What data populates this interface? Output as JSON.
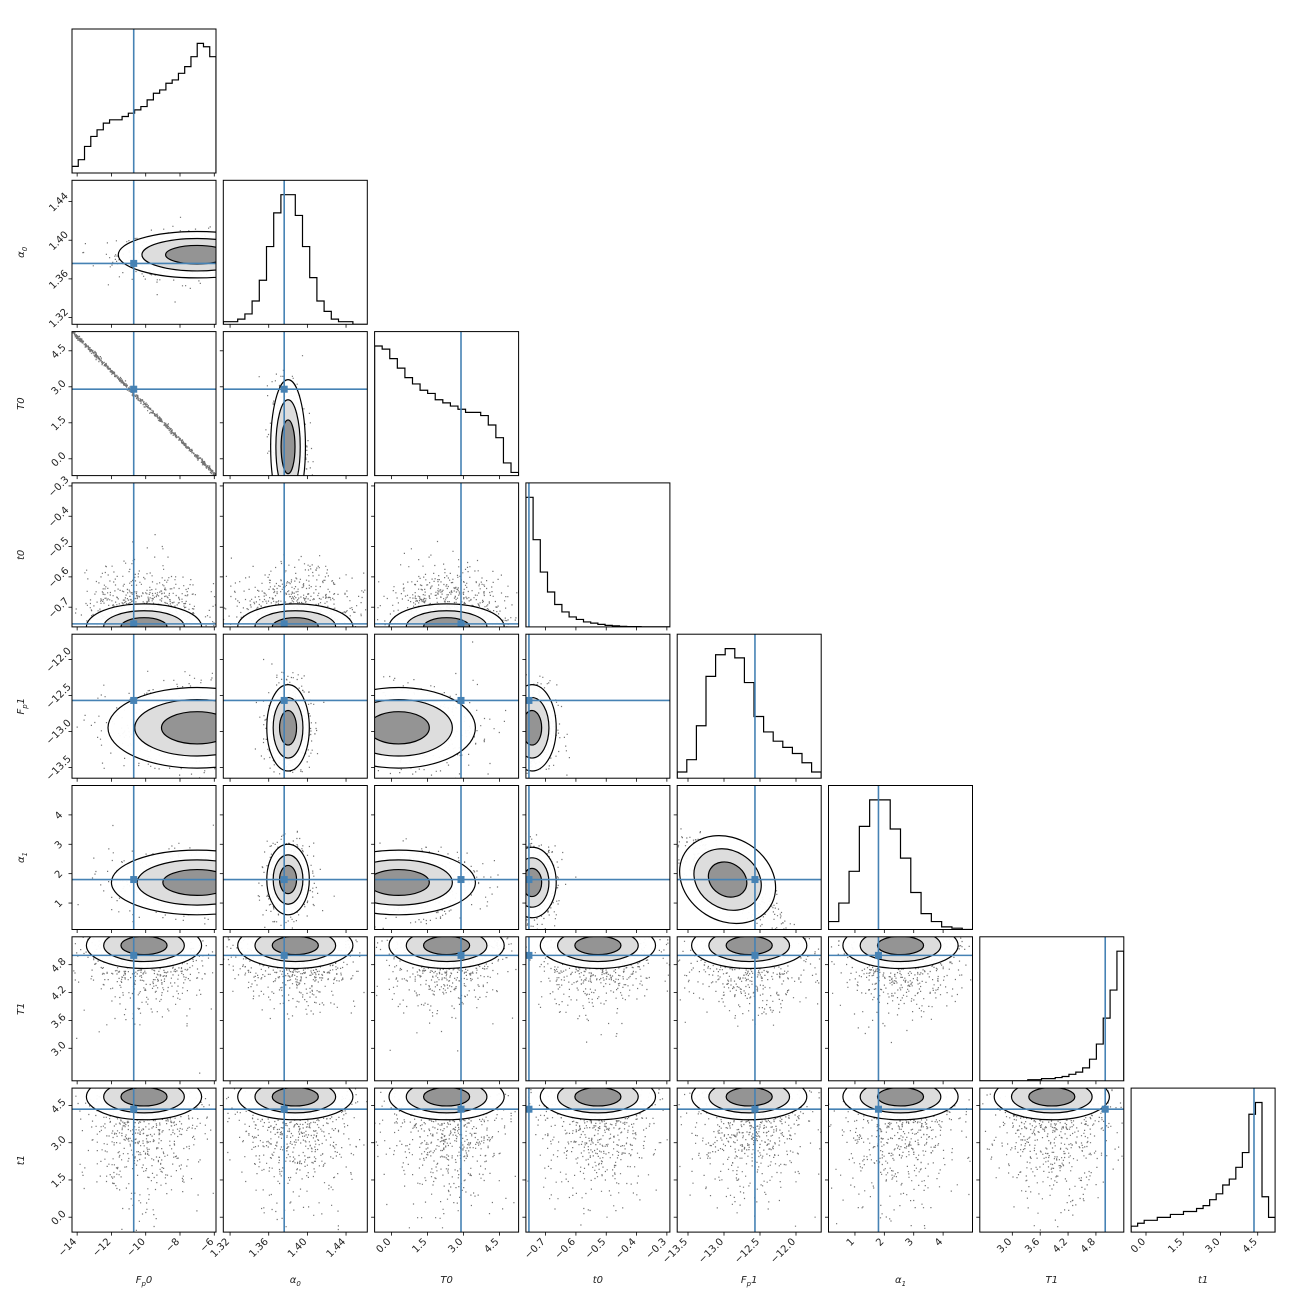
{
  "chart_data": {
    "type": "corner",
    "truth_color": "#4682b4",
    "parameters": [
      {
        "label": "F_p0",
        "sub": "p",
        "base": "F",
        "suffix": "0",
        "range": [
          -14.3,
          -5.9
        ],
        "ticks": [
          -14,
          -12,
          -10,
          -8,
          -6
        ],
        "tick_labels": [
          "−14",
          "−12",
          "−10",
          "−8",
          "−6"
        ],
        "truth": -10.7
      },
      {
        "label": "α_0",
        "base": "α",
        "sub": "0",
        "suffix": "",
        "range": [
          1.313,
          1.462
        ],
        "ticks": [
          1.32,
          1.36,
          1.4,
          1.44
        ],
        "tick_labels": [
          "1.32",
          "1.36",
          "1.40",
          "1.44"
        ],
        "truth": 1.376
      },
      {
        "label": "T0",
        "base": "T0",
        "sub": "",
        "suffix": "",
        "range": [
          -0.7,
          5.3
        ],
        "ticks": [
          0.0,
          1.5,
          3.0,
          4.5
        ],
        "tick_labels": [
          "0.0",
          "1.5",
          "3.0",
          "4.5"
        ],
        "truth": 2.9
      },
      {
        "label": "t0",
        "base": "t0",
        "sub": "",
        "suffix": "",
        "range": [
          -0.765,
          -0.29
        ],
        "ticks": [
          -0.7,
          -0.6,
          -0.5,
          -0.4,
          -0.3
        ],
        "tick_labels": [
          "−0.7",
          "−0.6",
          "−0.5",
          "−0.4",
          "−0.3"
        ],
        "truth": -0.755
      },
      {
        "label": "F_p1",
        "base": "F",
        "sub": "p",
        "suffix": "1",
        "range": [
          -13.65,
          -11.65
        ],
        "ticks": [
          -13.5,
          -13.0,
          -12.5,
          -12.0
        ],
        "tick_labels": [
          "−13.5",
          "−13.0",
          "−12.5",
          "−12.0"
        ],
        "truth": -12.57
      },
      {
        "label": "α_1",
        "base": "α",
        "sub": "1",
        "suffix": "",
        "range": [
          0.1,
          5.0
        ],
        "ticks": [
          1,
          2,
          3,
          4
        ],
        "tick_labels": [
          "1",
          "2",
          "3",
          "4"
        ],
        "truth": 1.8
      },
      {
        "label": "T1",
        "base": "T1",
        "sub": "",
        "suffix": "",
        "range": [
          2.3,
          5.4
        ],
        "ticks": [
          3.0,
          3.6,
          4.2,
          4.8
        ],
        "tick_labels": [
          "3.0",
          "3.6",
          "4.2",
          "4.8"
        ],
        "truth": 5.0
      },
      {
        "label": "t1",
        "base": "t1",
        "sub": "",
        "suffix": "",
        "range": [
          -0.6,
          5.2
        ],
        "ticks": [
          0.0,
          1.5,
          3.0,
          4.5
        ],
        "tick_labels": [
          "0.0",
          "1.5",
          "3.0",
          "4.5"
        ],
        "truth": 4.35
      }
    ],
    "histograms": [
      [
        2,
        4,
        8,
        11,
        13,
        15,
        16,
        16,
        17,
        18,
        19,
        20,
        22,
        24,
        25,
        27,
        28,
        30,
        32,
        35,
        39,
        38,
        35
      ],
      [
        1,
        1,
        2,
        4,
        9,
        17,
        30,
        43,
        50,
        50,
        42,
        30,
        18,
        9,
        5,
        2,
        1,
        1,
        0,
        0
      ],
      [
        41,
        40,
        37,
        34,
        31,
        29,
        27,
        26,
        24,
        23,
        22,
        21,
        20,
        20,
        19,
        16,
        12,
        4,
        1
      ],
      [
        52,
        35,
        22,
        14,
        9,
        6,
        4,
        3,
        2,
        1.5,
        1,
        0.6,
        0.4,
        0.2,
        0.1,
        0.1,
        0,
        0,
        0,
        0
      ],
      [
        2,
        6,
        17,
        33,
        40,
        42,
        39,
        31,
        20,
        15,
        12,
        10,
        8,
        5,
        2
      ],
      [
        3,
        10,
        22,
        39,
        49,
        49,
        38,
        27,
        14,
        6,
        3,
        1,
        0.5,
        0
      ],
      [
        0,
        0,
        0,
        0,
        0,
        0,
        0,
        0.5,
        0.5,
        1,
        1,
        1.5,
        2,
        3,
        4,
        6,
        10,
        17,
        29,
        42,
        60
      ],
      [
        2,
        3,
        4,
        4,
        5,
        5,
        6,
        6,
        7,
        7,
        8,
        9,
        11,
        13,
        16,
        18,
        22,
        27,
        40,
        44,
        12,
        5
      ]
    ],
    "correlations": {
      "1,0": {
        "r": 0.0,
        "mx": -7.0,
        "my": 1.385,
        "sx": 2.3,
        "sy": 0.012
      },
      "2,0": {
        "line": true
      },
      "2,1": {
        "mx": 1.38,
        "my": 0.5,
        "sx": 0.009,
        "sy": 1.4
      },
      "3,0": {
        "edge": true
      },
      "3,1": {
        "edge": true
      },
      "3,2": {
        "edge": true
      },
      "4,0": {
        "mx": -7.0,
        "my": -12.95,
        "sx": 2.6,
        "sy": 0.28
      },
      "4,1": {
        "mx": 1.38,
        "my": -12.95,
        "sx": 0.011,
        "sy": 0.3
      },
      "4,2": {
        "mx": 0.3,
        "my": -12.95,
        "sx": 1.6,
        "sy": 0.28
      },
      "4,3": {
        "mx": -0.745,
        "my": -12.95,
        "sx": 0.04,
        "sy": 0.3
      },
      "5,0": {
        "mx": -7.0,
        "my": 1.7,
        "sx": 2.5,
        "sy": 0.55
      },
      "5,1": {
        "mx": 1.38,
        "my": 1.8,
        "sx": 0.011,
        "sy": 0.6
      },
      "5,2": {
        "mx": 0.3,
        "my": 1.7,
        "sx": 1.6,
        "sy": 0.55
      },
      "5,3": {
        "mx": -0.745,
        "my": 1.7,
        "sx": 0.04,
        "sy": 0.6
      },
      "5,4": {
        "r": -0.8,
        "mx": -12.95,
        "my": 1.8,
        "sx": 0.35,
        "sy": 0.7
      },
      "6,0": {
        "top": true
      },
      "6,1": {
        "top": true
      },
      "6,2": {
        "top": true
      },
      "6,3": {
        "top": true
      },
      "6,4": {
        "top": true
      },
      "6,5": {
        "top": true
      },
      "7,0": {
        "tri": true
      },
      "7,1": {
        "funnel": true
      },
      "7,2": {
        "tri": true
      },
      "7,3": {
        "funnel": true
      },
      "7,4": {
        "funnel": true
      },
      "7,5": {
        "funnel": true
      },
      "7,6": {
        "corner": true
      }
    }
  }
}
